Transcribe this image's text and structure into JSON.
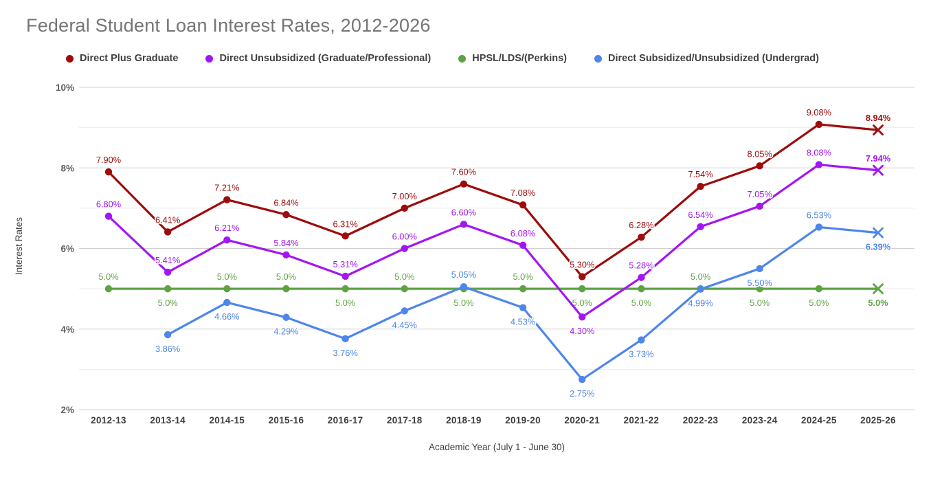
{
  "title": "Federal Student Loan Interest Rates, 2012-2026",
  "legend": {
    "items": [
      {
        "label": "Direct Plus Graduate",
        "color": "#9e0b0b"
      },
      {
        "label": "Direct Unsubsidized (Graduate/Professional)",
        "color": "#a316f2"
      },
      {
        "label": "HPSL/LDS/(Perkins)",
        "color": "#5da344"
      },
      {
        "label": "Direct Subsidized/Unsubsidized (Undergrad)",
        "color": "#4d86ec"
      }
    ]
  },
  "axes": {
    "y_title": "Interest Rates",
    "x_title": "Academic Year (July 1 - June 30)"
  },
  "chart_data": {
    "type": "line",
    "title": "Federal Student Loan Interest Rates, 2012-2026",
    "xlabel": "Academic Year (July 1 - June 30)",
    "ylabel": "Interest Rates",
    "legend_position": "top",
    "grid": "horizontal, minor every 1%, labeled every 2%",
    "ylim": [
      2,
      10
    ],
    "yticks": [
      {
        "value": 2,
        "label": "2%"
      },
      {
        "value": 4,
        "label": "4%"
      },
      {
        "value": 6,
        "label": "6%"
      },
      {
        "value": 8,
        "label": "8%"
      },
      {
        "value": 10,
        "label": "10%"
      }
    ],
    "categories": [
      "2012-13",
      "2013-14",
      "2014-15",
      "2015-16",
      "2016-17",
      "2017-18",
      "2018-19",
      "2019-20",
      "2020-21",
      "2021-22",
      "2022-23",
      "2023-24",
      "2024-25",
      "2025-26"
    ],
    "series": [
      {
        "name": "Direct Plus Graduate",
        "color": "#9e0b0b",
        "last_marker": "x",
        "values": [
          7.9,
          6.41,
          7.21,
          6.84,
          6.31,
          7.0,
          7.6,
          7.08,
          5.3,
          6.28,
          7.54,
          8.05,
          9.08,
          8.94
        ],
        "labels": [
          "7.90%",
          "6.41%",
          "7.21%",
          "6.84%",
          "6.31%",
          "7.00%",
          "7.60%",
          "7.08%",
          "5.30%",
          "6.28%",
          "7.54%",
          "8.05%",
          "9.08%",
          "8.94%"
        ],
        "label_side": [
          "above",
          "above",
          "above",
          "above",
          "above",
          "above",
          "above",
          "above",
          "above",
          "above",
          "above",
          "above",
          "above",
          "above"
        ]
      },
      {
        "name": "Direct Unsubsidized (Graduate/Professional)",
        "color": "#a316f2",
        "last_marker": "x",
        "values": [
          6.8,
          5.41,
          6.21,
          5.84,
          5.31,
          6.0,
          6.6,
          6.08,
          4.3,
          5.28,
          6.54,
          7.05,
          8.08,
          7.94
        ],
        "labels": [
          "6.80%",
          "5.41%",
          "6.21%",
          "5.84%",
          "5.31%",
          "6.00%",
          "6.60%",
          "6.08%",
          "4.30%",
          "5.28%",
          "6.54%",
          "7.05%",
          "8.08%",
          "7.94%"
        ],
        "label_side": [
          "above",
          "above",
          "above",
          "above",
          "above",
          "above",
          "above",
          "above",
          "below",
          "above",
          "above",
          "above",
          "above",
          "above"
        ]
      },
      {
        "name": "HPSL/LDS/(Perkins)",
        "color": "#5da344",
        "last_marker": "x",
        "values": [
          5.0,
          5.0,
          5.0,
          5.0,
          5.0,
          5.0,
          5.0,
          5.0,
          5.0,
          5.0,
          5.0,
          5.0,
          5.0,
          5.0
        ],
        "labels": [
          "5.0%",
          "5.0%",
          "5.0%",
          "5.0%",
          "5.0%",
          "5.0%",
          "5.0%",
          "5.0%",
          "5.0%",
          "5.0%",
          "5.0%",
          "5.0%",
          "5.0%",
          "5.0%"
        ],
        "label_side": [
          "above",
          "below",
          "above",
          "above",
          "below",
          "above",
          "below",
          "above",
          "below",
          "below",
          "above",
          "below",
          "below",
          "below"
        ]
      },
      {
        "name": "Direct Subsidized/Unsubsidized (Undergrad)",
        "color": "#4d86ec",
        "last_marker": "x",
        "values": [
          null,
          3.86,
          4.66,
          4.29,
          3.76,
          4.45,
          5.05,
          4.53,
          2.75,
          3.73,
          4.99,
          5.5,
          6.53,
          6.39
        ],
        "labels": [
          null,
          "3.86%",
          "4.66%",
          "4.29%",
          "3.76%",
          "4.45%",
          "5.05%",
          "4.53%",
          "2.75%",
          "3.73%",
          "4.99%",
          "5.50%",
          "6.53%",
          "6.39%"
        ],
        "label_side": [
          null,
          "below",
          "below",
          "below",
          "below",
          "below",
          "above",
          "below",
          "below",
          "below",
          "below",
          "below",
          "above",
          "below"
        ]
      }
    ]
  }
}
